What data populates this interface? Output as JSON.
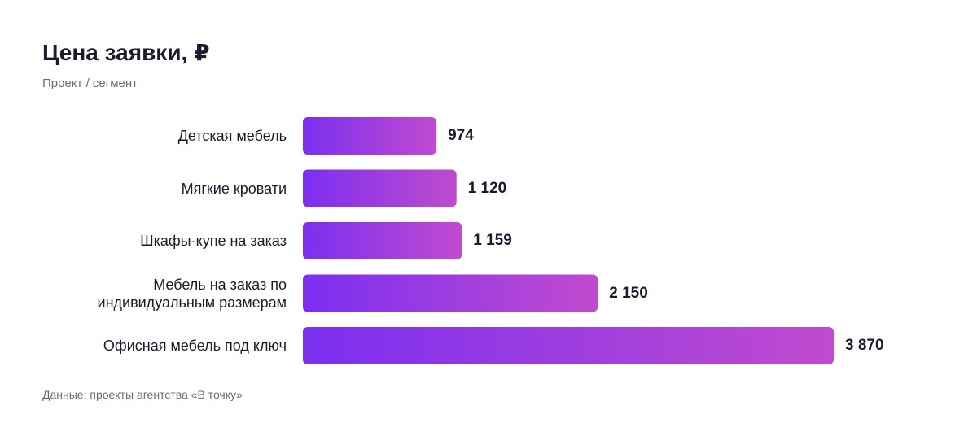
{
  "chart_data": {
    "type": "bar",
    "orientation": "horizontal",
    "title": "Цена заявки, ₽",
    "subtitle": "Проект / сегмент",
    "footer": "Данные: проекты агентства «В точку»",
    "categories": [
      "Детская мебель",
      "Мягкие кровати",
      "Шкафы-купе на заказ",
      "Мебель на заказ по индивидуальным размерам",
      "Офисная мебель под ключ"
    ],
    "values": [
      974,
      1120,
      1159,
      2150,
      3870
    ],
    "value_labels": [
      "974",
      "1 120",
      "1 159",
      "2 150",
      "3 870"
    ],
    "color": [
      "#7b2ff0",
      "#c04bcf"
    ]
  }
}
